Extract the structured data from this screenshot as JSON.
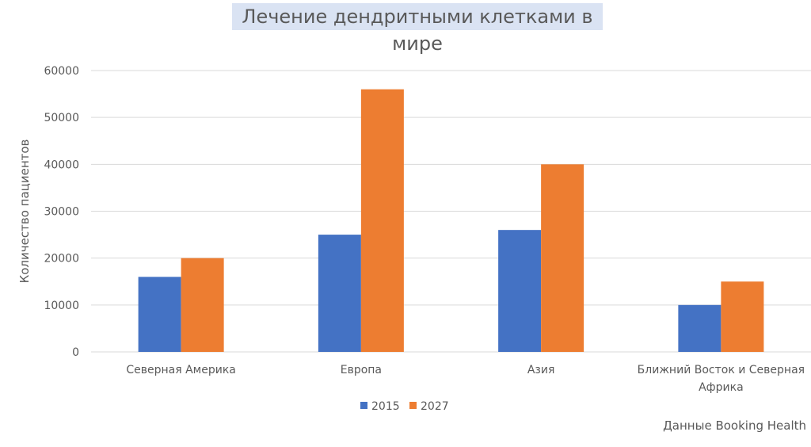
{
  "chart_data": {
    "type": "bar",
    "title": "Лечение дендритными клетками в мире",
    "ylabel": "Количество пациентов",
    "xlabel": "",
    "categories": [
      "Северная Америка",
      "Европа",
      "Азия",
      "Ближний Восток и Северная Африка"
    ],
    "series": [
      {
        "name": "2015",
        "color": "#4472c4",
        "values": [
          16000,
          25000,
          26000,
          10000
        ]
      },
      {
        "name": "2027",
        "color": "#ed7d31",
        "values": [
          20000,
          56000,
          40000,
          15000
        ]
      }
    ],
    "ylim": [
      0,
      60000
    ],
    "yticks": [
      0,
      10000,
      20000,
      30000,
      40000,
      50000,
      60000
    ],
    "grid": true,
    "legend": "bottom",
    "source": "Данные Booking Health"
  }
}
